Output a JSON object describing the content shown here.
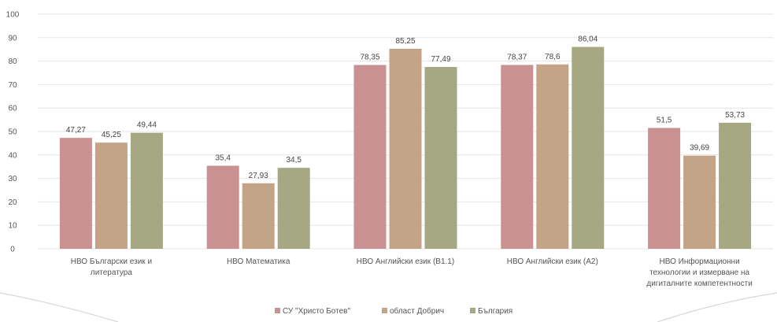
{
  "chart_data": {
    "type": "bar",
    "title": "",
    "xlabel": "",
    "ylabel": "",
    "ylim": [
      0,
      100
    ],
    "yticks": [
      0,
      10,
      20,
      30,
      40,
      50,
      60,
      70,
      80,
      90,
      100
    ],
    "grid": true,
    "legend_position": "bottom",
    "categories": [
      [
        "НВО Български език и",
        "литература"
      ],
      [
        "НВО Математика"
      ],
      [
        "НВО Английски език (В1.1)"
      ],
      [
        "НВО Английски език (А2)"
      ],
      [
        "НВО Информационни",
        "технологии и измерване на",
        "дигиталните компетентности"
      ]
    ],
    "series": [
      {
        "name": "СУ \"Христо Ботев\"",
        "color": "#c99192",
        "values": [
          47.27,
          35.4,
          78.35,
          78.37,
          51.5
        ],
        "labels": [
          "47,27",
          "35,4",
          "78,35",
          "78,37",
          "51,5"
        ]
      },
      {
        "name": "област Добрич",
        "color": "#c4a486",
        "values": [
          45.25,
          27.93,
          85.25,
          78.6,
          39.69
        ],
        "labels": [
          "45,25",
          "27,93",
          "85,25",
          "78,6",
          "39,69"
        ]
      },
      {
        "name": "България",
        "color": "#a5a883",
        "values": [
          49.44,
          34.5,
          77.49,
          86.04,
          53.73
        ],
        "labels": [
          "49,44",
          "34,5",
          "77,49",
          "86,04",
          "53,73"
        ]
      }
    ]
  }
}
